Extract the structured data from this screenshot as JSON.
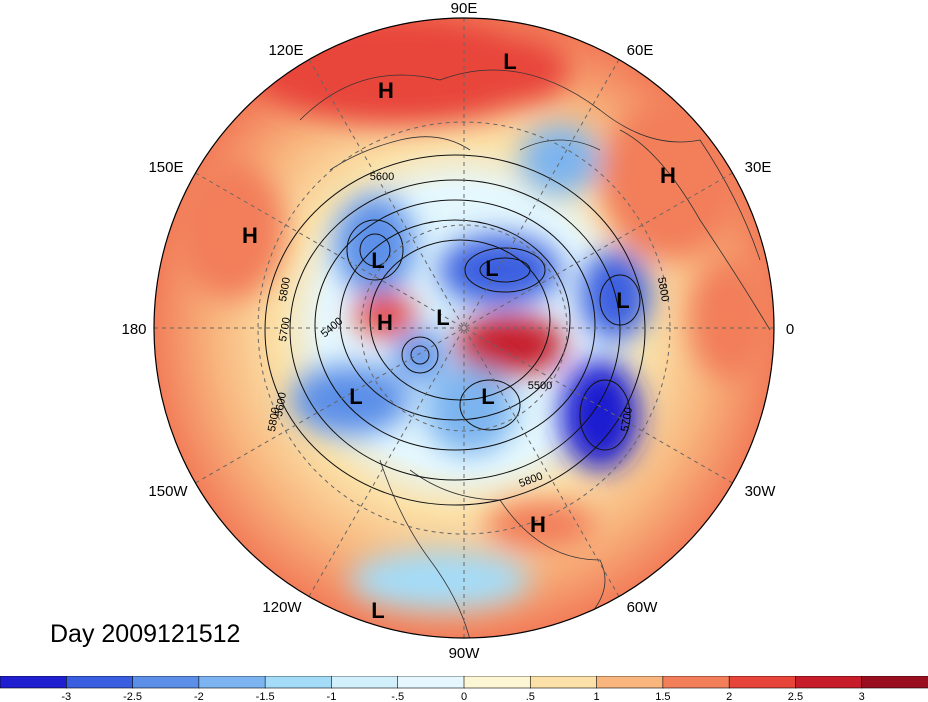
{
  "title": "Day 2009121512",
  "longitude_labels": [
    "90E",
    "60E",
    "30E",
    "0",
    "30W",
    "60W",
    "90W",
    "120W",
    "150W",
    "180",
    "150E",
    "120E"
  ],
  "pressure_centers": [
    {
      "label": "H"
    },
    {
      "label": "L"
    },
    {
      "label": "H"
    },
    {
      "label": "H"
    },
    {
      "label": "L"
    },
    {
      "label": "L"
    },
    {
      "label": "L"
    },
    {
      "label": "H"
    },
    {
      "label": "L"
    },
    {
      "label": "L"
    },
    {
      "label": "L"
    },
    {
      "label": "H"
    },
    {
      "label": "L"
    }
  ],
  "contour_labels": [
    "5600",
    "5800",
    "5700",
    "5400",
    "5600",
    "5800",
    "5500",
    "5800",
    "5700",
    "5800"
  ],
  "colorbar": {
    "ticks": [
      "-3",
      "-2.5",
      "-2",
      "-1.5",
      "-1",
      "-.5",
      "0",
      ".5",
      "1",
      "1.5",
      "2",
      "2.5",
      "3"
    ],
    "colors": [
      "#1f1fd0",
      "#3a5ee0",
      "#5b8fe8",
      "#7bb4f0",
      "#a4dcf8",
      "#d2f0fc",
      "#e6f8fd",
      "#fdf6d4",
      "#fbe1a8",
      "#f8b67e",
      "#f27e5a",
      "#e8453a",
      "#c71c2a",
      "#9a0f1f"
    ]
  }
}
